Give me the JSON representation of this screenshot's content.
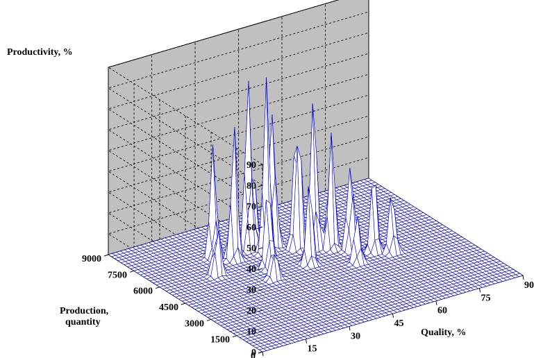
{
  "chart_data": {
    "type": "surface",
    "zlabel": "Productivity, %",
    "xlabel": "Quality, %",
    "ylabel_lines": [
      "Production,",
      "quantity"
    ],
    "z_ticks": [
      "0",
      "10",
      "20",
      "30",
      "40",
      "50",
      "60",
      "70",
      "80",
      "90"
    ],
    "x_ticks": [
      "0",
      "15",
      "30",
      "45",
      "60",
      "75",
      "90"
    ],
    "y_ticks": [
      "0",
      "1500",
      "3000",
      "4500",
      "6000",
      "7500",
      "9000"
    ],
    "xlim": [
      0,
      90
    ],
    "ylim": [
      0,
      9000
    ],
    "zlim": [
      0,
      90
    ],
    "grid": true,
    "pane_color": "#c0c0c0",
    "surface_line_color": "#0000cc",
    "surface_fill_color": "#ffffff",
    "peaks": [
      {
        "quality": 18,
        "quantity": 5700,
        "productivity": 30
      },
      {
        "quality": 24,
        "quantity": 6900,
        "productivity": 58
      },
      {
        "quality": 28,
        "quantity": 6400,
        "productivity": 66
      },
      {
        "quality": 35,
        "quantity": 6700,
        "productivity": 93
      },
      {
        "quality": 38,
        "quantity": 6200,
        "productivity": 85
      },
      {
        "quality": 42,
        "quantity": 6500,
        "productivity": 78
      },
      {
        "quality": 47,
        "quantity": 5900,
        "productivity": 88
      },
      {
        "quality": 51,
        "quantity": 5600,
        "productivity": 77
      },
      {
        "quality": 55,
        "quantity": 5300,
        "productivity": 64
      },
      {
        "quality": 59,
        "quantity": 4800,
        "productivity": 52
      },
      {
        "quality": 64,
        "quantity": 4300,
        "productivity": 40
      },
      {
        "quality": 68,
        "quantity": 3900,
        "productivity": 32
      },
      {
        "quality": 33,
        "quantity": 5200,
        "productivity": 46
      },
      {
        "quality": 44,
        "quantity": 4700,
        "productivity": 41
      },
      {
        "quality": 56,
        "quantity": 3900,
        "productivity": 24
      },
      {
        "quality": 40,
        "quantity": 7300,
        "productivity": 36
      },
      {
        "quality": 30,
        "quantity": 4400,
        "productivity": 20
      }
    ]
  }
}
